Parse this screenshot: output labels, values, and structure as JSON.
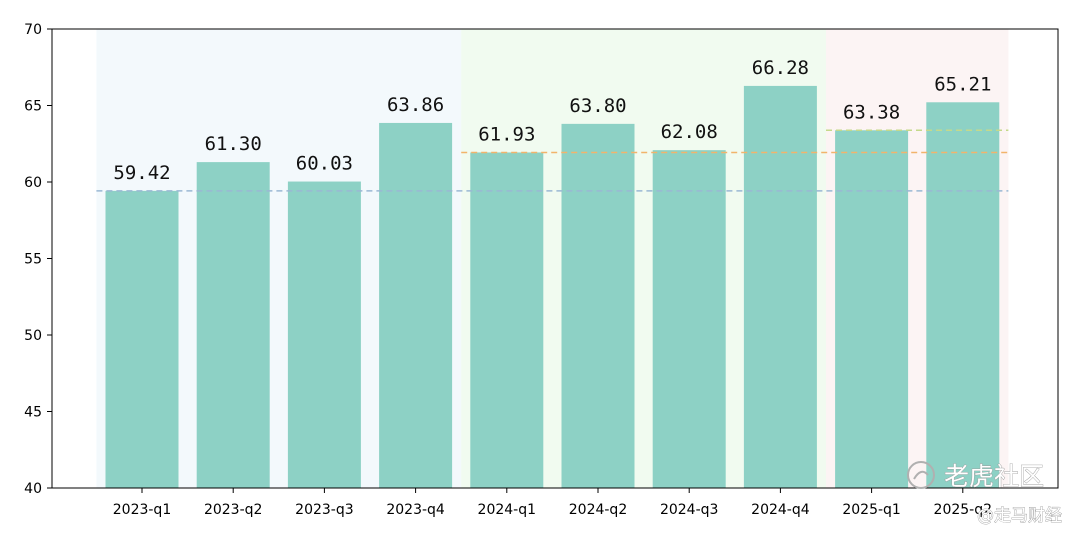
{
  "chart_data": {
    "type": "bar",
    "categories": [
      "2023-q1",
      "2023-q2",
      "2023-q3",
      "2023-q4",
      "2024-q1",
      "2024-q2",
      "2024-q3",
      "2024-q4",
      "2025-q1",
      "2025-q2"
    ],
    "values": [
      59.42,
      61.3,
      60.03,
      63.86,
      61.93,
      63.8,
      62.08,
      66.28,
      63.38,
      65.21
    ],
    "data_labels": [
      "59.42",
      "61.30",
      "60.03",
      "63.86",
      "61.93",
      "63.80",
      "62.08",
      "66.28",
      "63.38",
      "65.21"
    ],
    "ylim": [
      40,
      70
    ],
    "yticks": [
      40,
      45,
      50,
      55,
      60,
      65,
      70
    ],
    "bar_color": "#8dd1c5",
    "year_bands": [
      {
        "from": 0,
        "to": 3,
        "color": "#f3f9fc"
      },
      {
        "from": 4,
        "to": 7,
        "color": "#f1fbf0"
      },
      {
        "from": 8,
        "to": 9,
        "color": "#fcf4f4"
      }
    ],
    "reference_lines": [
      {
        "value": 59.42,
        "from": 0,
        "to": 9,
        "color": "#9ab8d4"
      },
      {
        "value": 61.93,
        "from": 4,
        "to": 9,
        "color": "#f2b36b"
      },
      {
        "value": 63.38,
        "from": 8,
        "to": 9,
        "color": "#c5d98a"
      }
    ],
    "grid": false,
    "legend": "none"
  },
  "watermark": {
    "text1": "老虎社区",
    "text2": "@走马财经"
  }
}
